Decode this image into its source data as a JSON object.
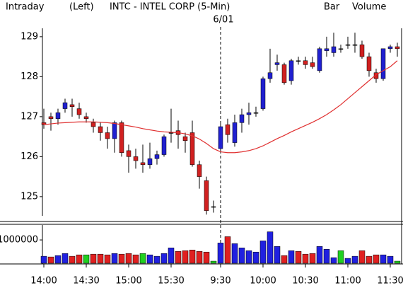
{
  "header": {
    "left": "Intraday",
    "mode": "(Left)",
    "right": "Bar",
    "volume_label": "Volume",
    "volume_label_color": "#20b020"
  },
  "chart_data": [
    {
      "type": "candlestick",
      "title": "INTC - INTEL CORP  (5-Min)",
      "categories": [
        "14:00",
        null,
        null,
        null,
        null,
        null,
        "14:30",
        null,
        null,
        null,
        null,
        null,
        "15:00",
        null,
        null,
        null,
        null,
        null,
        "15:30",
        null,
        null,
        null,
        null,
        null,
        null,
        "9:30",
        null,
        null,
        null,
        null,
        null,
        "10:00",
        null,
        null,
        null,
        null,
        null,
        "10:30",
        null,
        null,
        null,
        null,
        null,
        "11:00",
        null,
        null,
        null,
        null,
        null,
        "11:30",
        null
      ],
      "open": [
        126.85,
        127.0,
        126.95,
        127.2,
        127.3,
        127.2,
        127.0,
        126.85,
        126.75,
        126.6,
        126.45,
        126.85,
        126.15,
        126.0,
        125.85,
        125.8,
        125.95,
        126.05,
        126.6,
        126.65,
        126.5,
        126.6,
        125.8,
        125.4,
        124.75,
        126.2,
        126.8,
        126.35,
        126.85,
        127.05,
        127.1,
        127.2,
        127.95,
        128.3,
        128.3,
        127.9,
        128.4,
        128.4,
        128.35,
        128.15,
        128.65,
        128.6,
        128.7,
        128.8,
        128.8,
        128.8,
        128.5,
        128.1,
        127.95,
        128.7,
        128.75
      ],
      "high": [
        127.2,
        127.1,
        127.2,
        127.45,
        127.45,
        127.35,
        127.1,
        126.95,
        126.85,
        126.75,
        126.9,
        126.9,
        126.3,
        126.2,
        126.3,
        126.35,
        126.15,
        126.55,
        127.2,
        126.9,
        126.6,
        126.9,
        125.9,
        125.5,
        124.9,
        126.85,
        126.95,
        127.05,
        127.2,
        127.35,
        127.25,
        128.0,
        128.7,
        128.55,
        128.35,
        128.45,
        128.5,
        128.5,
        128.5,
        128.75,
        129.0,
        129.1,
        128.8,
        129.0,
        129.1,
        128.9,
        128.6,
        128.2,
        128.7,
        128.8,
        128.85
      ],
      "low": [
        126.7,
        126.65,
        126.8,
        127.1,
        127.0,
        126.95,
        126.85,
        126.6,
        126.4,
        126.2,
        126.1,
        126.0,
        125.6,
        125.7,
        125.6,
        125.7,
        125.8,
        126.0,
        126.35,
        126.2,
        126.1,
        125.75,
        125.2,
        124.55,
        124.6,
        126.1,
        126.35,
        126.25,
        126.6,
        126.8,
        127.0,
        127.15,
        127.85,
        128.15,
        127.8,
        127.8,
        128.3,
        128.2,
        128.2,
        128.1,
        128.5,
        128.5,
        128.6,
        128.7,
        128.6,
        128.45,
        128.0,
        127.85,
        127.9,
        128.6,
        128.5
      ],
      "close": [
        126.8,
        126.95,
        127.1,
        127.35,
        127.25,
        127.05,
        126.95,
        126.75,
        126.6,
        126.45,
        126.85,
        126.1,
        126.0,
        125.9,
        125.8,
        125.95,
        126.05,
        126.5,
        126.6,
        126.55,
        126.4,
        125.8,
        125.5,
        124.65,
        124.75,
        126.75,
        126.55,
        126.85,
        127.05,
        127.1,
        127.1,
        127.95,
        128.1,
        128.35,
        127.85,
        128.4,
        128.4,
        128.3,
        128.25,
        128.7,
        128.7,
        128.75,
        128.7,
        128.8,
        128.8,
        128.5,
        128.15,
        127.95,
        128.7,
        128.75,
        128.7
      ],
      "up_color": "#2020d0",
      "down_color": "#d02020",
      "flat_color": "#000000",
      "overlay": {
        "color": "#e03030",
        "values": [
          126.8,
          126.82,
          126.84,
          126.85,
          126.86,
          126.87,
          126.87,
          126.87,
          126.86,
          126.85,
          126.83,
          126.8,
          126.77,
          126.74,
          126.7,
          126.67,
          126.64,
          126.62,
          126.61,
          126.6,
          126.57,
          126.52,
          126.44,
          126.33,
          126.2,
          126.12,
          126.1,
          126.1,
          126.12,
          126.15,
          126.2,
          126.27,
          126.36,
          126.45,
          126.53,
          126.62,
          126.7,
          126.78,
          126.86,
          126.95,
          127.05,
          127.17,
          127.3,
          127.45,
          127.6,
          127.75,
          127.9,
          128.05,
          128.15,
          128.25,
          128.4
        ]
      },
      "divider": {
        "index": 25,
        "label": "6/01"
      },
      "ylim": [
        124.52,
        129.21
      ],
      "yticks": [
        125,
        126,
        127,
        128,
        129
      ]
    },
    {
      "type": "bar",
      "values": [
        300000,
        270000,
        330000,
        420000,
        300000,
        360000,
        360000,
        390000,
        390000,
        360000,
        420000,
        390000,
        420000,
        360000,
        420000,
        360000,
        300000,
        420000,
        660000,
        510000,
        540000,
        570000,
        510000,
        480000,
        90000,
        870000,
        1140000,
        840000,
        660000,
        540000,
        480000,
        960000,
        1350000,
        720000,
        330000,
        540000,
        510000,
        390000,
        420000,
        720000,
        600000,
        240000,
        540000,
        210000,
        300000,
        540000,
        300000,
        360000,
        360000,
        300000,
        90000
      ],
      "colors": [
        "#2020e0",
        "#e02020",
        "#2020e0",
        "#2020e0",
        "#e02020",
        "#e02020",
        "#20d020",
        "#e02020",
        "#e02020",
        "#e02020",
        "#2020e0",
        "#e02020",
        "#e02020",
        "#e02020",
        "#20d020",
        "#2020e0",
        "#2020e0",
        "#2020e0",
        "#2020e0",
        "#e02020",
        "#e02020",
        "#e02020",
        "#e02020",
        "#e02020",
        "#20d020",
        "#2020e0",
        "#e02020",
        "#2020e0",
        "#2020e0",
        "#2020e0",
        "#2020e0",
        "#2020e0",
        "#2020e0",
        "#2020e0",
        "#e02020",
        "#2020e0",
        "#e02020",
        "#e02020",
        "#e02020",
        "#2020e0",
        "#2020e0",
        "#2020e0",
        "#20d020",
        "#2020e0",
        "#2020e0",
        "#e02020",
        "#e02020",
        "#e02020",
        "#2020e0",
        "#2020e0",
        "#20d020"
      ],
      "ylim": [
        0,
        1640000
      ],
      "yticks": [
        1000000
      ]
    }
  ]
}
